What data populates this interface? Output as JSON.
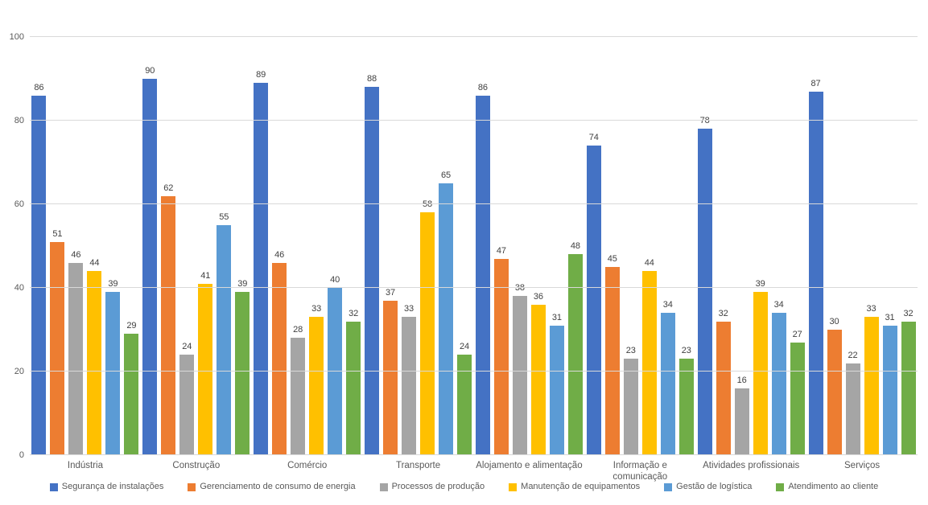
{
  "chart_data": {
    "type": "bar",
    "title": "",
    "xlabel": "",
    "ylabel": "",
    "ylim": [
      0,
      100
    ],
    "yticks": [
      0,
      20,
      40,
      60,
      80,
      100
    ],
    "grid": true,
    "legend_position": "bottom",
    "value_labels": true,
    "categories": [
      "Indústria",
      "Construção",
      "Comércio",
      "Transporte",
      "Alojamento e alimentação",
      "Informação e comunicação",
      "Atividades profissionais",
      "Serviços"
    ],
    "series": [
      {
        "name": "Segurança de instalações",
        "color": "#4472C4",
        "values": [
          86,
          90,
          89,
          88,
          86,
          74,
          78,
          87
        ]
      },
      {
        "name": "Gerenciamento de consumo de energia",
        "color": "#ED7D31",
        "values": [
          51,
          62,
          46,
          37,
          47,
          45,
          32,
          30
        ]
      },
      {
        "name": "Processos de produção",
        "color": "#A5A5A5",
        "values": [
          46,
          24,
          28,
          33,
          38,
          23,
          16,
          22
        ]
      },
      {
        "name": "Manutenção de equipamentos",
        "color": "#FFC000",
        "values": [
          44,
          41,
          33,
          58,
          36,
          44,
          39,
          33
        ]
      },
      {
        "name": "Gestão de logística",
        "color": "#5B9BD5",
        "values": [
          39,
          55,
          40,
          65,
          31,
          34,
          34,
          31
        ]
      },
      {
        "name": "Atendimento ao cliente",
        "color": "#70AD47",
        "values": [
          29,
          39,
          32,
          24,
          48,
          23,
          27,
          32
        ]
      }
    ]
  },
  "palette": {
    "gridline": "#D9D9D9",
    "axis_text": "#595959",
    "value_label_text": "#404040",
    "background": "#FFFFFF"
  }
}
